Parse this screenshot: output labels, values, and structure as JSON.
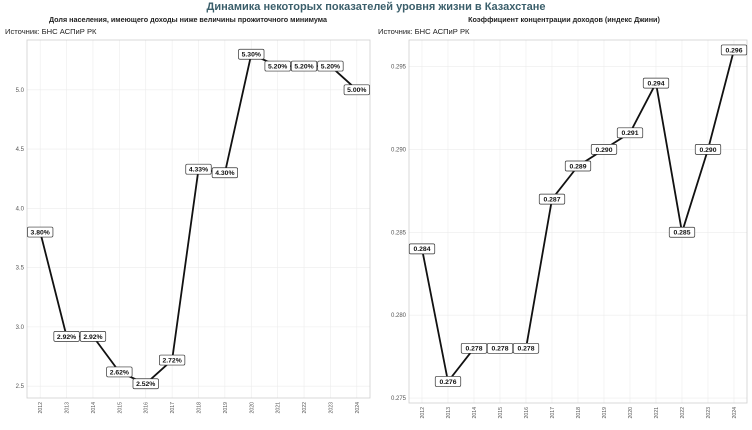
{
  "figure": {
    "title": "Динамика некоторых показателей уровня жизни в Казахстане",
    "colors": {
      "title": "#3b5f6b",
      "line": "#111111",
      "grid": "#ececec",
      "label_border": "#333333"
    }
  },
  "chart_data": [
    {
      "type": "line",
      "title": "Доля населения, имеющего доходы ниже величины прожиточного минимума",
      "source": "Источник: БНС АСПиР РК",
      "xlabel": "",
      "ylabel": "",
      "x": [
        "2012",
        "2013",
        "2014",
        "2015",
        "2016",
        "2017",
        "2018",
        "2019",
        "2020",
        "2021",
        "2022",
        "2023",
        "2024"
      ],
      "values": [
        3.8,
        2.92,
        2.92,
        2.62,
        2.52,
        2.72,
        4.33,
        4.3,
        5.3,
        5.2,
        5.2,
        5.2,
        5.0
      ],
      "data_labels": [
        "3.80%",
        "2.92%",
        "2.92%",
        "2.62%",
        "2.52%",
        "2.72%",
        "4.33%",
        "4.30%",
        "5.30%",
        "5.20%",
        "5.20%",
        "5.20%",
        "5.00%"
      ],
      "yticks": [
        2.5,
        3.0,
        3.5,
        4.0,
        4.5,
        5.0
      ],
      "ytick_labels": [
        "2.5",
        "3.0",
        "3.5",
        "4.0",
        "4.5",
        "5.0"
      ],
      "ylim": [
        2.4,
        5.42
      ],
      "grid": true,
      "legend": "none"
    },
    {
      "type": "line",
      "title": "Коэффициент концентрации доходов (индекс Джини)",
      "source": "Источник: БНС АСПиР РК",
      "xlabel": "",
      "ylabel": "",
      "x": [
        "2012",
        "2013",
        "2014",
        "2015",
        "2016",
        "2017",
        "2018",
        "2019",
        "2020",
        "2021",
        "2022",
        "2023",
        "2024"
      ],
      "values": [
        0.284,
        0.276,
        0.278,
        0.278,
        0.278,
        0.287,
        0.289,
        0.29,
        0.291,
        0.294,
        0.285,
        0.29,
        0.296
      ],
      "data_labels": [
        "0.284",
        "0.276",
        "0.278",
        "0.278",
        "0.278",
        "0.287",
        "0.289",
        "0.290",
        "0.291",
        "0.294",
        "0.285",
        "0.290",
        "0.296"
      ],
      "yticks": [
        0.275,
        0.28,
        0.285,
        0.29,
        0.295
      ],
      "ytick_labels": [
        "0.275",
        "0.280",
        "0.285",
        "0.290",
        "0.295"
      ],
      "ylim": [
        0.2747,
        0.2966
      ],
      "grid": true,
      "legend": "none"
    }
  ]
}
